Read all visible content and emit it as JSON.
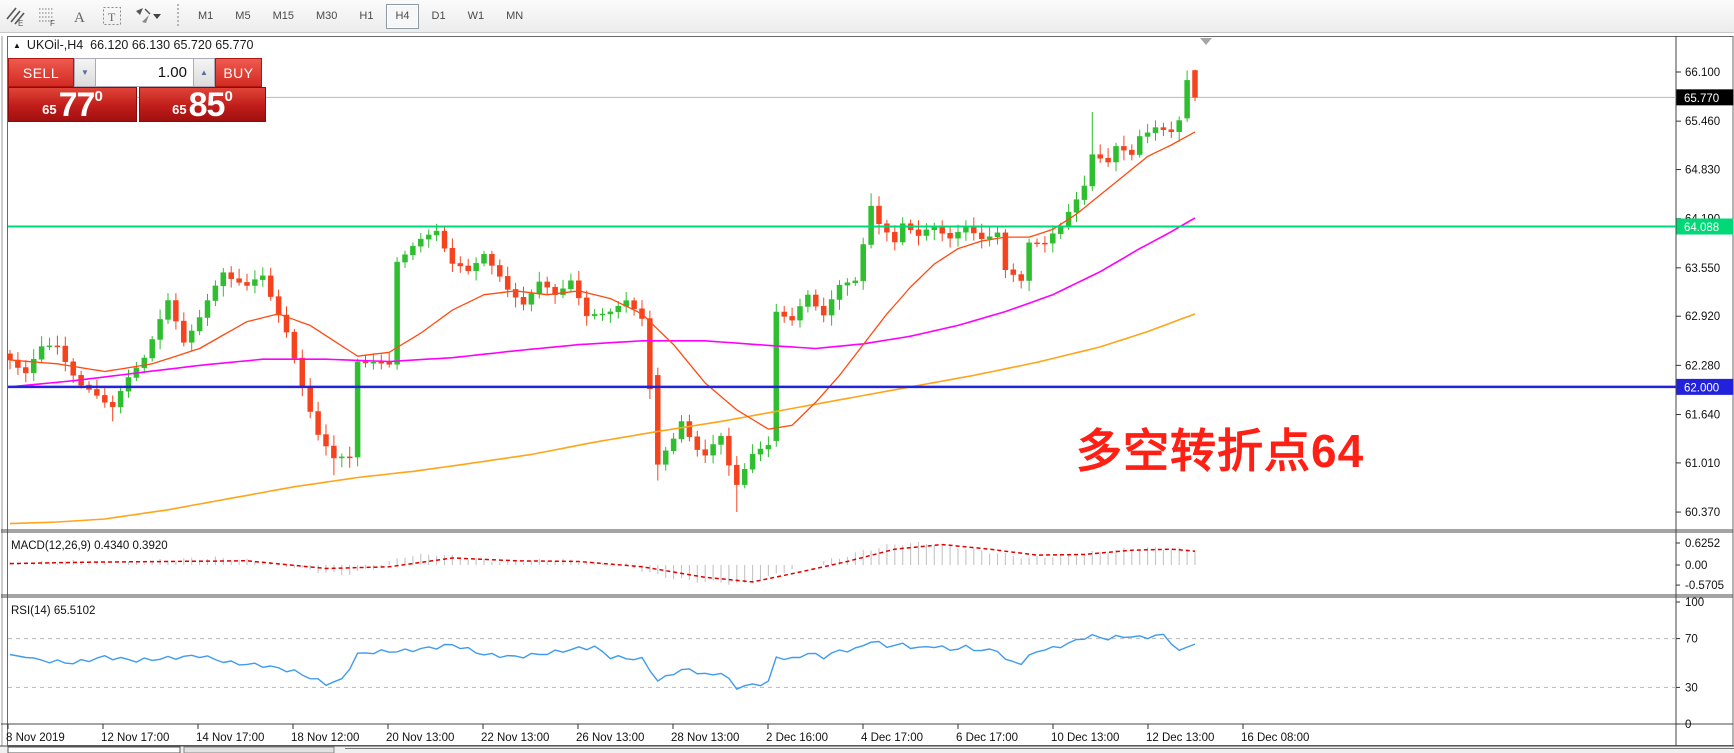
{
  "toolbar": {
    "tool_icons": [
      "pattern-hatch-e-icon",
      "grid-f-icon",
      "text-a-icon",
      "label-t-icon",
      "arrow-objects-icon"
    ],
    "timeframes": [
      "M1",
      "M5",
      "M15",
      "M30",
      "H1",
      "H4",
      "D1",
      "W1",
      "MN"
    ],
    "active_timeframe": "H4"
  },
  "header": {
    "title": "UKOil-,H4  66.120 66.130 65.720 65.770"
  },
  "order_panel": {
    "sell_label": "SELL",
    "buy_label": "BUY",
    "volume": "1.00",
    "sell_small": "65",
    "sell_big": "77",
    "sell_sup": "0",
    "buy_small": "65",
    "buy_big": "85",
    "buy_sup": "0"
  },
  "annotation": {
    "text": "多空转折点64",
    "color": "#ff2015"
  },
  "chart_data": {
    "type": "candlestick",
    "symbol": "UKOil-",
    "timeframe": "H4",
    "current_bar": {
      "open": 66.12,
      "high": 66.13,
      "low": 65.72,
      "close": 65.77
    },
    "price_axis": [
      66.1,
      65.46,
      64.83,
      64.19,
      63.55,
      62.92,
      62.28,
      61.64,
      61.01,
      60.37
    ],
    "badges": [
      {
        "text": "65.770",
        "price": 65.77,
        "bg": "#000000",
        "fg": "#ffffff"
      },
      {
        "text": "64.088",
        "price": 64.088,
        "bg": "#00d877",
        "fg": "#ffffff"
      },
      {
        "text": "62.000",
        "price": 62.0,
        "bg": "#2222dd",
        "fg": "#ffffff"
      }
    ],
    "hlines": [
      {
        "price": 65.77,
        "color": "#b8b8b8",
        "w": 1
      },
      {
        "price": 64.088,
        "color": "#00d877",
        "w": 2
      },
      {
        "price": 62.0,
        "color": "#2323dd",
        "w": 2.5
      }
    ],
    "colors": {
      "up": "#2fbe2f",
      "down": "#f5431e",
      "ma_fast": "#ff4a10",
      "ma_mid": "#ff00ff",
      "ma_slow": "#ffa519",
      "macd_hist": "#c4c4c4",
      "macd_signal": "#e00000",
      "rsi": "#3f9bf0"
    },
    "bars": 151,
    "close_anchors": [
      [
        0,
        62.35
      ],
      [
        2,
        62.2
      ],
      [
        4,
        62.5
      ],
      [
        6,
        62.55
      ],
      [
        8,
        62.15
      ],
      [
        9,
        62.0
      ],
      [
        11,
        61.9
      ],
      [
        13,
        61.75
      ],
      [
        15,
        62.1
      ],
      [
        17,
        62.4
      ],
      [
        20,
        63.1
      ],
      [
        22,
        62.6
      ],
      [
        24,
        62.9
      ],
      [
        27,
        63.5
      ],
      [
        30,
        63.3
      ],
      [
        32,
        63.45
      ],
      [
        35,
        62.7
      ],
      [
        37,
        62.0
      ],
      [
        39,
        61.4
      ],
      [
        41,
        61.05
      ],
      [
        43,
        61.1
      ],
      [
        44,
        62.35
      ],
      [
        46,
        62.3
      ],
      [
        48,
        62.3
      ],
      [
        49,
        63.65
      ],
      [
        52,
        63.9
      ],
      [
        54,
        64.05
      ],
      [
        56,
        63.6
      ],
      [
        58,
        63.5
      ],
      [
        60,
        63.75
      ],
      [
        63,
        63.25
      ],
      [
        65,
        63.1
      ],
      [
        67,
        63.35
      ],
      [
        69,
        63.2
      ],
      [
        71,
        63.4
      ],
      [
        73,
        62.9
      ],
      [
        76,
        63.0
      ],
      [
        78,
        63.1
      ],
      [
        80,
        62.9
      ],
      [
        81,
        62.0
      ],
      [
        82,
        61.0
      ],
      [
        84,
        61.3
      ],
      [
        85,
        61.55
      ],
      [
        87,
        61.2
      ],
      [
        88,
        61.1
      ],
      [
        90,
        61.35
      ],
      [
        91,
        61.0
      ],
      [
        92,
        60.75
      ],
      [
        94,
        61.1
      ],
      [
        96,
        61.25
      ],
      [
        97,
        63.0
      ],
      [
        99,
        62.85
      ],
      [
        101,
        63.2
      ],
      [
        103,
        62.95
      ],
      [
        105,
        63.3
      ],
      [
        107,
        63.4
      ],
      [
        109,
        64.35
      ],
      [
        110,
        64.1
      ],
      [
        112,
        63.9
      ],
      [
        113,
        64.15
      ],
      [
        115,
        63.95
      ],
      [
        117,
        64.1
      ],
      [
        119,
        63.95
      ],
      [
        121,
        64.05
      ],
      [
        123,
        63.95
      ],
      [
        125,
        64.0
      ],
      [
        126,
        63.5
      ],
      [
        128,
        63.4
      ],
      [
        129,
        63.9
      ],
      [
        131,
        63.85
      ],
      [
        133,
        64.1
      ],
      [
        134,
        64.3
      ],
      [
        136,
        64.6
      ],
      [
        137,
        65.0
      ],
      [
        139,
        64.95
      ],
      [
        140,
        65.15
      ],
      [
        142,
        65.0
      ],
      [
        143,
        65.25
      ],
      [
        145,
        65.4
      ],
      [
        147,
        65.3
      ],
      [
        148,
        65.45
      ],
      [
        149,
        66.0
      ],
      [
        150,
        65.77
      ]
    ],
    "candle_overrides": {
      "13": {
        "l": 61.55
      },
      "41": {
        "l": 60.85
      },
      "82": {
        "o": 62.15,
        "h": 62.25,
        "l": 60.78
      },
      "92": {
        "l": 60.37
      },
      "97": {
        "o": 61.3,
        "l": 61.22,
        "h": 63.08
      },
      "109": {
        "h": 64.52
      },
      "137": {
        "h": 65.58
      },
      "149": {
        "o": 65.5,
        "h": 66.12,
        "l": 65.45
      },
      "150": {
        "o": 66.12,
        "h": 66.13,
        "l": 65.72,
        "c": 65.77
      }
    },
    "ma_fast_anchors": [
      [
        0,
        62.35
      ],
      [
        6,
        62.3
      ],
      [
        12,
        62.2
      ],
      [
        18,
        62.3
      ],
      [
        24,
        62.5
      ],
      [
        30,
        62.85
      ],
      [
        34,
        62.95
      ],
      [
        38,
        62.8
      ],
      [
        44,
        62.4
      ],
      [
        48,
        62.45
      ],
      [
        52,
        62.7
      ],
      [
        56,
        63.0
      ],
      [
        60,
        63.2
      ],
      [
        64,
        63.25
      ],
      [
        68,
        63.2
      ],
      [
        72,
        63.25
      ],
      [
        76,
        63.15
      ],
      [
        80,
        62.95
      ],
      [
        84,
        62.55
      ],
      [
        88,
        62.05
      ],
      [
        92,
        61.7
      ],
      [
        96,
        61.45
      ],
      [
        99,
        61.5
      ],
      [
        102,
        61.8
      ],
      [
        105,
        62.15
      ],
      [
        108,
        62.55
      ],
      [
        111,
        62.95
      ],
      [
        114,
        63.3
      ],
      [
        117,
        63.6
      ],
      [
        120,
        63.8
      ],
      [
        123,
        63.9
      ],
      [
        126,
        63.95
      ],
      [
        129,
        63.95
      ],
      [
        132,
        64.05
      ],
      [
        135,
        64.25
      ],
      [
        138,
        64.5
      ],
      [
        141,
        64.75
      ],
      [
        144,
        65.0
      ],
      [
        147,
        65.15
      ],
      [
        150,
        65.32
      ]
    ],
    "ma_mid_anchors": [
      [
        0,
        62.0
      ],
      [
        8,
        62.08
      ],
      [
        16,
        62.18
      ],
      [
        24,
        62.28
      ],
      [
        32,
        62.36
      ],
      [
        40,
        62.36
      ],
      [
        48,
        62.33
      ],
      [
        56,
        62.38
      ],
      [
        64,
        62.47
      ],
      [
        72,
        62.55
      ],
      [
        80,
        62.6
      ],
      [
        88,
        62.6
      ],
      [
        96,
        62.54
      ],
      [
        102,
        62.5
      ],
      [
        108,
        62.56
      ],
      [
        114,
        62.66
      ],
      [
        120,
        62.8
      ],
      [
        126,
        62.98
      ],
      [
        132,
        63.2
      ],
      [
        138,
        63.5
      ],
      [
        143,
        63.8
      ],
      [
        147,
        64.02
      ],
      [
        150,
        64.2
      ]
    ],
    "ma_slow_anchors": [
      [
        0,
        60.22
      ],
      [
        6,
        60.24
      ],
      [
        12,
        60.28
      ],
      [
        20,
        60.4
      ],
      [
        28,
        60.55
      ],
      [
        36,
        60.7
      ],
      [
        44,
        60.82
      ],
      [
        51,
        60.9
      ],
      [
        58,
        61.0
      ],
      [
        66,
        61.12
      ],
      [
        74,
        61.28
      ],
      [
        82,
        61.42
      ],
      [
        90,
        61.55
      ],
      [
        98,
        61.7
      ],
      [
        106,
        61.85
      ],
      [
        114,
        62.0
      ],
      [
        122,
        62.15
      ],
      [
        130,
        62.32
      ],
      [
        138,
        62.52
      ],
      [
        144,
        62.72
      ],
      [
        150,
        62.95
      ]
    ],
    "macd": {
      "label": "MACD(12,26,9) 0.4340 0.3920",
      "axis": [
        {
          "v": 0.6252,
          "t": "0.6252"
        },
        {
          "v": 0.0,
          "t": "0.00"
        },
        {
          "v": -0.5705,
          "t": "-0.5705"
        }
      ],
      "hist_anchors": [
        [
          0,
          0.05
        ],
        [
          8,
          0.1
        ],
        [
          14,
          0.02
        ],
        [
          20,
          0.15
        ],
        [
          26,
          0.2
        ],
        [
          32,
          0.1
        ],
        [
          38,
          -0.15
        ],
        [
          42,
          -0.28
        ],
        [
          46,
          -0.1
        ],
        [
          50,
          0.25
        ],
        [
          54,
          0.3
        ],
        [
          58,
          0.2
        ],
        [
          62,
          0.1
        ],
        [
          66,
          0.12
        ],
        [
          70,
          0.15
        ],
        [
          74,
          0.05
        ],
        [
          78,
          0.0
        ],
        [
          82,
          -0.3
        ],
        [
          86,
          -0.45
        ],
        [
          90,
          -0.5
        ],
        [
          93,
          -0.55
        ],
        [
          96,
          -0.35
        ],
        [
          99,
          -0.1
        ],
        [
          102,
          0.05
        ],
        [
          105,
          0.2
        ],
        [
          108,
          0.4
        ],
        [
          111,
          0.55
        ],
        [
          114,
          0.62
        ],
        [
          117,
          0.6
        ],
        [
          120,
          0.5
        ],
        [
          123,
          0.4
        ],
        [
          126,
          0.3
        ],
        [
          129,
          0.2
        ],
        [
          132,
          0.25
        ],
        [
          135,
          0.3
        ],
        [
          138,
          0.38
        ],
        [
          141,
          0.45
        ],
        [
          144,
          0.48
        ],
        [
          147,
          0.46
        ],
        [
          150,
          0.434
        ]
      ],
      "signal_anchors": [
        [
          0,
          0.04
        ],
        [
          10,
          0.08
        ],
        [
          20,
          0.1
        ],
        [
          30,
          0.12
        ],
        [
          40,
          -0.1
        ],
        [
          48,
          -0.05
        ],
        [
          56,
          0.2
        ],
        [
          64,
          0.12
        ],
        [
          72,
          0.1
        ],
        [
          80,
          -0.05
        ],
        [
          88,
          -0.35
        ],
        [
          94,
          -0.48
        ],
        [
          100,
          -0.2
        ],
        [
          106,
          0.1
        ],
        [
          112,
          0.45
        ],
        [
          118,
          0.58
        ],
        [
          124,
          0.45
        ],
        [
          130,
          0.28
        ],
        [
          136,
          0.3
        ],
        [
          142,
          0.42
        ],
        [
          147,
          0.45
        ],
        [
          150,
          0.392
        ]
      ]
    },
    "rsi": {
      "label": "RSI(14) 65.5102",
      "levels": [
        {
          "v": 100,
          "t": "100"
        },
        {
          "v": 70,
          "t": "70",
          "dashed": true
        },
        {
          "v": 30,
          "t": "30",
          "dashed": true
        },
        {
          "v": 0,
          "t": "0"
        }
      ],
      "anchors": [
        [
          0,
          57
        ],
        [
          4,
          52
        ],
        [
          8,
          50
        ],
        [
          12,
          55
        ],
        [
          16,
          52
        ],
        [
          20,
          54
        ],
        [
          24,
          56
        ],
        [
          28,
          50
        ],
        [
          32,
          48
        ],
        [
          36,
          43
        ],
        [
          38,
          38
        ],
        [
          40,
          33
        ],
        [
          42,
          36
        ],
        [
          44,
          57
        ],
        [
          46,
          59
        ],
        [
          50,
          60
        ],
        [
          54,
          63
        ],
        [
          56,
          65
        ],
        [
          60,
          57
        ],
        [
          64,
          55
        ],
        [
          68,
          58
        ],
        [
          72,
          62
        ],
        [
          74,
          63
        ],
        [
          76,
          55
        ],
        [
          80,
          53
        ],
        [
          81,
          45
        ],
        [
          82,
          35
        ],
        [
          84,
          42
        ],
        [
          86,
          45
        ],
        [
          88,
          40
        ],
        [
          90,
          42
        ],
        [
          91,
          36
        ],
        [
          92,
          30
        ],
        [
          94,
          32
        ],
        [
          96,
          34
        ],
        [
          97,
          55
        ],
        [
          99,
          53
        ],
        [
          101,
          58
        ],
        [
          103,
          55
        ],
        [
          105,
          60
        ],
        [
          107,
          61
        ],
        [
          109,
          68
        ],
        [
          111,
          64
        ],
        [
          113,
          65
        ],
        [
          115,
          62
        ],
        [
          117,
          64
        ],
        [
          119,
          61
        ],
        [
          121,
          63
        ],
        [
          123,
          60
        ],
        [
          125,
          61
        ],
        [
          126,
          52
        ],
        [
          128,
          50
        ],
        [
          130,
          60
        ],
        [
          132,
          62
        ],
        [
          134,
          66
        ],
        [
          136,
          71
        ],
        [
          137,
          72
        ],
        [
          139,
          70
        ],
        [
          141,
          72
        ],
        [
          143,
          71
        ],
        [
          145,
          72
        ],
        [
          146,
          73
        ],
        [
          147,
          67
        ],
        [
          148,
          59
        ],
        [
          149,
          63
        ],
        [
          150,
          65.51
        ]
      ]
    },
    "date_axis": [
      "8 Nov 2019",
      "12 Nov 17:00",
      "14 Nov 17:00",
      "18 Nov 12:00",
      "20 Nov 13:00",
      "22 Nov 13:00",
      "26 Nov 13:00",
      "28 Nov 13:00",
      "2 Dec 16:00",
      "4 Dec 17:00",
      "6 Dec 17:00",
      "10 Dec 13:00",
      "12 Dec 13:00",
      "16 Dec 08:00"
    ]
  }
}
